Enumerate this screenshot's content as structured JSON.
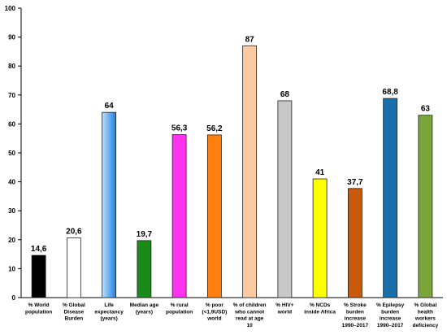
{
  "chart_data": {
    "type": "bar",
    "title": "",
    "xlabel": "",
    "ylabel": "",
    "ylim": [
      0,
      100
    ],
    "yticks": [
      0,
      10,
      20,
      30,
      40,
      50,
      60,
      70,
      80,
      90,
      100
    ],
    "grid": false,
    "legend": "none",
    "categories": [
      [
        "% World",
        "population"
      ],
      [
        "% Global",
        "Disease",
        "Burden"
      ],
      [
        "Life",
        "expectancy",
        "(years)"
      ],
      [
        "Median age",
        "(years)"
      ],
      [
        "% rural",
        "population"
      ],
      [
        "% poor",
        "(<1,9USD)",
        "world"
      ],
      [
        "% of children",
        "who cannot",
        "read at age",
        "10"
      ],
      [
        "% HIV+",
        "world"
      ],
      [
        "% NCDs",
        "inside Africa"
      ],
      [
        "% Stroke",
        "burden",
        "increase",
        "1990–2017"
      ],
      [
        "% Epilepsy",
        "burden",
        "increase",
        "1990–2017"
      ],
      [
        "% Global",
        "health",
        "workers",
        "deficiency"
      ]
    ],
    "values": [
      14.6,
      20.6,
      64,
      19.7,
      56.3,
      56.2,
      87,
      68,
      41,
      37.7,
      68.8,
      63
    ],
    "value_labels": [
      "14,6",
      "20,6",
      "64",
      "19,7",
      "56,3",
      "56,2",
      "87",
      "68",
      "41",
      "37,7",
      "68,8",
      "63"
    ],
    "colors": [
      "#000000",
      "#ffffff",
      "gradient-blue",
      "#1a8a1a",
      "#ff33ee",
      "#ff7f0e",
      "#fdc9a0",
      "#c8c8c8",
      "#ffff00",
      "#c95a0c",
      "#1a6fa8",
      "#7aa63c"
    ]
  }
}
